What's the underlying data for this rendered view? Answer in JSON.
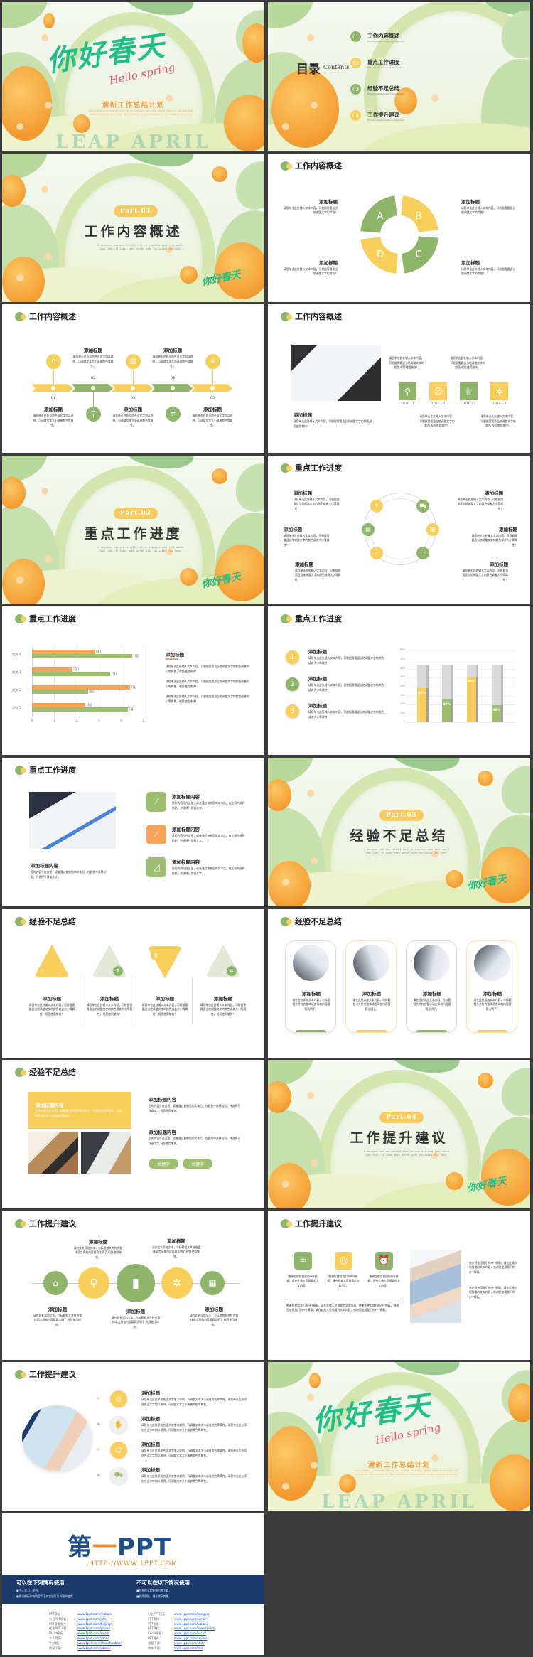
{
  "colors": {
    "green": "#8fb56a",
    "yellow": "#f7cf5a",
    "orange": "#f8a35a",
    "navy": "#1b3a6b",
    "brand_blue": "#1f4e8c",
    "brand_orange": "#ec8a2c"
  },
  "slides": [
    {
      "type": "cover",
      "title_art": "你好春天",
      "script": "Hello spring",
      "subtitle": "清新工作总结计划",
      "body": "Your content is entered here, or by copying your text, select Paste in this box and choose to retain only text. Your content is entered here, or by copying your text.",
      "watermark": "LEAP APRIL"
    },
    {
      "type": "toc",
      "heading": "目录",
      "heading_en": "Contents",
      "items": [
        {
          "num": "01",
          "title": "工作内容概述",
          "sub": "Enter the relevant content you want here."
        },
        {
          "num": "02",
          "title": "重点工作进度",
          "sub": "Enter the relevant content you want here."
        },
        {
          "num": "03",
          "title": "经验不足总结",
          "sub": "Enter the relevant content you want here."
        },
        {
          "num": "04",
          "title": "工作提升建议",
          "sub": "Enter the relevant content you want here."
        }
      ]
    },
    {
      "type": "section",
      "part": "Part.01",
      "title": "工作内容概述",
      "desc": "A designer can use default text to simulate what text would look like. It looks even better with you using this text.",
      "logo": "你好春天"
    },
    {
      "type": "cycle",
      "header": "工作内容概述",
      "letters": [
        "A",
        "B",
        "C",
        "D"
      ],
      "items": [
        {
          "title": "添加标题",
          "body": "请您单击此处输入文本内容，可根据需要适当地调整文字的颜色！"
        },
        {
          "title": "添加标题",
          "body": "请您单击此处输入文本内容，可根据需要适当地调整文字的颜色！"
        },
        {
          "title": "添加标题",
          "body": "请您单击此处输入文本内容，可根据需要适当地调整文字的颜色！"
        },
        {
          "title": "添加标题",
          "body": "请您单击此处输入文本内容，可根据需要适当地调整文字的颜色！"
        }
      ]
    },
    {
      "type": "timeline",
      "header": "工作内容概述",
      "icons": [
        "home-icon",
        "search-icon",
        "chart-icon",
        "gear-icon",
        "trophy-icon"
      ],
      "items": [
        {
          "num": "01",
          "title": "添加标题",
          "body": "请您单击此处添加合适文字加以说明，可调整文本大小或者颜色等属性。"
        },
        {
          "num": "02",
          "title": "添加标题",
          "body": "请您单击此处添加合适文字加以说明，可调整文本大小或者颜色等属性。"
        },
        {
          "num": "03",
          "title": "添加标题",
          "body": "请您单击此处添加合适文字加以说明，可调整文本大小或者颜色等属性。"
        },
        {
          "num": "04",
          "title": "添加标题",
          "body": "请您单击此处添加合适文字加以说明，可调整文本大小或者颜色等属性。"
        },
        {
          "num": "05",
          "title": "添加标题",
          "body": "请您单击此处添加合适文字加以说明，可调整文本大小或者颜色等属性。"
        }
      ]
    },
    {
      "type": "photo_titles",
      "header": "工作内容概述",
      "main": {
        "title": "添加标题",
        "body": "请您单击此处输入文本内容，可根据需要适当地调整文字的颜色,祝您使用愉快！"
      },
      "tiles": [
        {
          "label": "TITLE - 1",
          "icon": "search-icon",
          "body": "请您单击此处输入文本内容，可根据需要适当地调整文字的颜色,祝您使用愉快！"
        },
        {
          "label": "TITLE - 2",
          "icon": "user-icon",
          "body": "请您单击此处输入文本内容，可根据需要适当地调整文字的颜色,祝您使用愉快！"
        },
        {
          "label": "TITLE - 3",
          "icon": "trophy-icon",
          "body": "请您单击此处输入文本内容，可根据需要适当地调整文字的颜色,祝您使用愉快！"
        },
        {
          "label": "TITLE - 4",
          "icon": "gear-icon",
          "body": "请您单击此处输入文本内容，可根据需要适当地调整文字的颜色,祝您使用愉快！"
        }
      ]
    },
    {
      "type": "section",
      "part": "Part.02",
      "title": "重点工作进度",
      "desc": "A designer can use default text to simulate what text would look like. It looks even better with you using this text.",
      "logo": "你好春天"
    },
    {
      "type": "ring",
      "header": "重点工作进度",
      "icons": [
        "yen-icon",
        "cart-icon",
        "document-icon",
        "chart-icon",
        "hand-icon",
        "monitor-icon"
      ],
      "items": [
        {
          "title": "添加标题",
          "body": "请您单击此处输入文本内容，可根据需要适当地调整文字的颜色或者大小等属性！"
        },
        {
          "title": "添加标题",
          "body": "请您单击此处输入文本内容，可根据需要适当地调整文字的颜色或者大小等属性！"
        },
        {
          "title": "添加标题",
          "body": "请您单击此处输入文本内容，可根据需要适当地调整文字的颜色或者大小等属性！"
        },
        {
          "title": "添加标题",
          "body": "请您单击此处输入文本内容，可根据需要适当地调整文字的颜色或者大小等属性！"
        },
        {
          "title": "添加标题",
          "body": "请您单击此处输入文本内容，可根据需要适当地调整文字的颜色或者大小等属性！"
        },
        {
          "title": "添加标题",
          "body": "请您单击此处输入文本内容，可根据需要适当地调整文字的颜色或者大小等属性！"
        }
      ]
    },
    {
      "type": "barchart",
      "header": "重点工作进度",
      "chart": {
        "type": "bar",
        "orientation": "horizontal",
        "categories": [
          "类别 1",
          "类别 2",
          "类别 3",
          "类别 4"
        ],
        "series": [
          {
            "values": [
              2.4,
              4.4,
              1.8,
              2.8
            ],
            "color": "#f8a35a"
          },
          {
            "values": [
              4.3,
              2.5,
              3.5,
              4.5
            ],
            "color": "#9dbd6f"
          }
        ],
        "data_label": "[值]",
        "xlim": [
          0,
          5
        ],
        "xticks": [
          "0",
          "1",
          "2",
          "3",
          "4",
          "5"
        ],
        "grid": true
      },
      "side": {
        "title": "添加标题",
        "paras": [
          "请您单击此处输入文本内容，可根据需要适当地调整文字的颜色或者大小等属性，祝您使用愉快！",
          "请您单击此处输入文本内容，可根据需要适当地调整文字的颜色或者大小等属性，祝您使用愉快！",
          "请您单击此处输入文本内容，可根据需要适当地调整文字的颜色或者大小等属性，祝您使用愉快！"
        ]
      }
    },
    {
      "type": "bars3d",
      "header": "重点工作进度",
      "items": [
        {
          "num": "1",
          "title": "添加标题",
          "body": "请您单击此处输入文本内容，可根据需要适当地调整文字的颜色或者大小等属性！"
        },
        {
          "num": "2",
          "title": "添加标题",
          "body": "请您单击此处输入文本内容，可根据需要适当地调整文字的颜色或者大小等属性！"
        },
        {
          "num": "3",
          "title": "添加标题",
          "body": "请您单击此处输入文本内容，可根据需要适当地调整文字的颜色或者大小等属性！"
        }
      ],
      "chart": {
        "type": "bar",
        "values": [
          60,
          40,
          80,
          30
        ],
        "labels": [
          "60%",
          "40%",
          "80%",
          "30%"
        ],
        "colors": [
          "#f7cf5a",
          "#9dbd6f",
          "#f7cf5a",
          "#9dbd6f"
        ],
        "ylim": [
          0,
          800
        ],
        "yticks": [
          "0",
          "100",
          "200",
          "300",
          "400",
          "500",
          "600",
          "700",
          "800"
        ],
        "grid": true
      }
    },
    {
      "type": "photo_icons",
      "header": "重点工作进度",
      "main": {
        "title": "添加标题内容",
        "body": "您的内容打在这里，或者通过复制您的文本后，在此框中选择粘贴，并选择只保留文字。"
      },
      "items": [
        {
          "title": "添加标题内容",
          "body": "您的内容打在这里，或者通过复制您的文本后，在此框中选择粘贴，并选择只保留文字。",
          "icon": "line-chart-icon",
          "color": "#9dbd6f"
        },
        {
          "title": "添加标题内容",
          "body": "您的内容打在这里，或者通过复制您的文本后，在此框中选择粘贴，并选择只保留文字。",
          "icon": "line-chart-icon",
          "color": "#f8a35a"
        },
        {
          "title": "添加标题内容",
          "body": "您的内容打在这里，或者通过复制您的文本后，在此框中选择粘贴，并选择只保留文字。",
          "icon": "area-chart-icon",
          "color": "#9dbd6f"
        }
      ]
    },
    {
      "type": "section",
      "part": "Part.03",
      "title": "经验不足总结",
      "desc": "A designer can use default text to simulate what text would look like. It looks even better with you using this text.",
      "logo": "你好春天"
    },
    {
      "type": "triangles",
      "header": "经验不足总结",
      "items": [
        {
          "num": "1",
          "title": "添加标题",
          "body": "请您单击此处输入文本内容，可根据需要适当地调整文字的颜色或者大小等属性，祝您使用愉快！"
        },
        {
          "num": "2",
          "title": "添加标题",
          "body": "请您单击此处输入文本内容，可根据需要适当地调整文字的颜色或者大小等属性，祝您使用愉快！"
        },
        {
          "num": "3",
          "title": "添加标题",
          "body": "请您单击此处输入文本内容，可根据需要适当地调整文字的颜色或者大小等属性，祝您使用愉快！"
        },
        {
          "num": "4",
          "title": "添加标题",
          "body": "请您单击此处输入文本内容，可根据需要适当地调整文字的颜色或者大小等属性，祝您使用愉快！"
        }
      ]
    },
    {
      "type": "cards",
      "header": "经验不足总结",
      "items": [
        {
          "title": "添加标题",
          "body": "请在此处添加文本内容，与标题相关并符合整体语言风格内容要简洁明了。"
        },
        {
          "title": "添加标题",
          "body": "请在此处添加文本内容，与标题相关并符合整体语言风格内容要简洁明了。"
        },
        {
          "title": "添加标题",
          "body": "请在此处添加文本内容，与标题相关并符合整体语言风格内容要简洁明了。"
        },
        {
          "title": "添加标题",
          "body": "请在此处添加文本内容，与标题相关并符合整体语言风格内容要简洁明了。"
        }
      ]
    },
    {
      "type": "yellowbox",
      "header": "经验不足总结",
      "box": {
        "title": "添加标题内容",
        "body": "您的内容打在这里，或者通过复制您的文本后，在此框中选择粘贴，并选择只保留文字,祝您使用愉快。"
      },
      "items": [
        {
          "title": "添加标题内容",
          "body": "您的内容打在这里，或者通过复制您的文本后，在此框中选择粘贴，并选择只保留文字,祝您使用愉快。"
        },
        {
          "title": "添加标题内容",
          "body": "您的内容打在这里，或者通过复制您的文本后，在此框中选择粘贴，并选择只保留文字,祝您使用愉快。"
        }
      ],
      "keywords": [
        "关键字",
        "关键字"
      ]
    },
    {
      "type": "section",
      "part": "Part.04",
      "title": "工作提升建议",
      "desc": "A designer can use default text to simulate what text would look like. It looks even better with you using this text.",
      "logo": "你好春天"
    },
    {
      "type": "circles",
      "header": "工作提升建议",
      "icons": [
        "home-icon",
        "search-icon",
        "bar-chart-icon",
        "gear-icon",
        "calendar-icon"
      ],
      "items": [
        {
          "title": "添加标题",
          "body": "请在此处添加文本，与标题相关并符合整体语言风格内容要简洁明了,祝您使用愉快。"
        },
        {
          "title": "添加标题",
          "body": "请在此处添加文本，与标题相关并符合整体语言风格内容要简洁明了,祝您使用愉快。"
        },
        {
          "title": "添加标题",
          "body": "请在此处添加文本，与标题相关并符合整体语言风格内容要简洁明了,祝您使用愉快。"
        },
        {
          "title": "添加标题",
          "body": "请在此处添加文本，与标题相关并符合整体语言风格内容要简洁明了,祝您使用愉快。"
        },
        {
          "title": "添加标题",
          "body": "请在此处添加文本，与标题相关并符合整体语言风格内容要简洁明了,祝您使用愉快。"
        }
      ]
    },
    {
      "type": "icons_photo",
      "header": "工作提升建议",
      "icons": [
        {
          "icon": "infinity-icon",
          "body": "感谢您使用我们的PPT模板，请在此输入您需要的文字内容。"
        },
        {
          "icon": "target-icon",
          "body": "感谢您使用我们的PPT模板，请在此输入您需要的文字内容。"
        },
        {
          "icon": "alarm-clock-icon",
          "body": "感谢您使用我们的PPT模板，请在此输入您需要的文字内容。"
        }
      ],
      "para": "感谢您使用我们的PPT模板，请在此输入您需要的文本内容，感谢您使用我们的PPT模板。感谢您使用我们的PPT模板，请在此输入您需要的文本内容，感谢您使用我们的PPT模板。",
      "right": [
        "感谢您使用我们的PPT模板，请在此输入您需要的文本内容，感谢您使用我们的PPT模板。",
        "感谢您使用我们的PPT模板，请在此输入您需要的文本内容，感谢您使用我们的PPT模板。"
      ]
    },
    {
      "type": "list",
      "header": "工作提升建议",
      "items": [
        {
          "icon": "target-icon",
          "title": "添加标题",
          "body": "请您单击此处添加合适文字加以说明，可调整文本大小或者颜色等属性。请您单击此处添加合适文字加以说明，可调整文本大小或者颜色等属性。"
        },
        {
          "icon": "handshake-icon",
          "title": "添加标题",
          "body": "请您单击此处添加合适文字加以说明，可调整文本大小或者颜色等属性。请您单击此处添加合适文字加以说明，可调整文本大小或者颜色等属性。"
        },
        {
          "icon": "user-icon",
          "title": "添加标题",
          "body": "请您单击此处添加合适文字加以说明，可调整文本大小或者颜色等属性。请您单击此处添加合适文字加以说明，可调整文本大小或者颜色等属性。"
        },
        {
          "icon": "cart-icon",
          "title": "添加标题",
          "body": "请您单击此处添加合适文字加以说明，可调整文本大小或者颜色等属性。请您单击此处添加合适文字加以说明，可调整文本大小或者颜色等属性。"
        }
      ]
    },
    {
      "type": "cover",
      "title_art": "你好春天",
      "script": "Hello spring",
      "subtitle": "清新工作总结计划",
      "body": "Your content is entered here, or by copying your text, select Paste in this box and choose to retain only text. Your content is entered here, or by copying your text.",
      "watermark": "LEAP APRIL"
    }
  ],
  "ad": {
    "logo_cn": "第",
    "logo_dash": "一",
    "logo_en": "PPT",
    "url": "HTTP://WWW.1PPT.COM",
    "can": {
      "title": "可以在下列情况使用",
      "items": [
        "■个人学习、研究。",
        "■拷贝模板中的内容用于其它幻灯片母版中使用。"
      ]
    },
    "cannot": {
      "title": "不可以在以下情况使用",
      "items": [
        "■任何形式的在线付费下载。",
        "■利用模板、线上线下传播。"
      ]
    },
    "links_left": [
      {
        "label": "PPT模板：",
        "url": "www.1ppt.com/moban/"
      },
      {
        "label": "节日PPT模板：",
        "url": "www.1ppt.com/jieri/"
      },
      {
        "label": "PPT背景图片：",
        "url": "www.1ppt.com/beijing/"
      },
      {
        "label": "优秀PPT下载：",
        "url": "www.1ppt.com/xiazai/"
      },
      {
        "label": "Word模板：",
        "url": "www.1ppt.com/word/"
      },
      {
        "label": "个人简历：",
        "url": "www.1ppt.com/jianli/"
      },
      {
        "label": "手抄报：",
        "url": "www.1ppt.com/shouchaobao/"
      },
      {
        "label": "教案下载：",
        "url": "www.1ppt.com/jiaoan/"
      }
    ],
    "links_right": [
      {
        "label": "行业PPT模板：",
        "url": "www.1ppt.com/hangye/"
      },
      {
        "label": "PPT素材：",
        "url": "www.1ppt.com/sucai/"
      },
      {
        "label": "PPT图表：",
        "url": "www.1ppt.com/tubiao/"
      },
      {
        "label": "PPT教程：",
        "url": "www.1ppt.com/powerpoint/"
      },
      {
        "label": "Excel模板：",
        "url": "www.1ppt.com/excel/"
      },
      {
        "label": "PPT课件：",
        "url": "www.1ppt.com/kejian/"
      },
      {
        "label": "试题下载：",
        "url": "www.1ppt.com/shiti/"
      },
      {
        "label": "字体下载：",
        "url": "www.1ppt.com/ziti/"
      }
    ]
  }
}
